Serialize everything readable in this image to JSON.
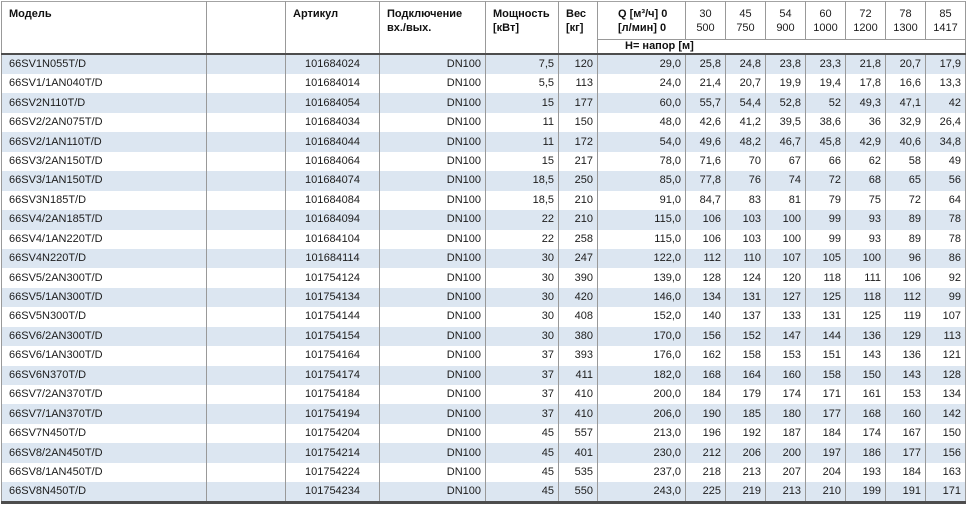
{
  "colors": {
    "row_stripe": "#dce6f1",
    "grid_line": "#999999",
    "heavy_border": "#4d4d4d",
    "header_text": "#111111",
    "body_text": "#1c1c1c"
  },
  "table": {
    "header": {
      "model": "Модель",
      "spacer": "",
      "article": "Артикул",
      "connection_line1": "Подключение",
      "connection_line2": "вх./вых.",
      "power_line1": "Мощность",
      "power_line2": "[кВт]",
      "weight_line1": "Вес",
      "weight_line2": "[кг]",
      "q_line1": "Q [м³/ч] 0",
      "q_line2": "[л/мин] 0",
      "head_subheader": "H= напор [м]",
      "flow_columns": [
        {
          "m3h": "30",
          "lmin": "500"
        },
        {
          "m3h": "45",
          "lmin": "750"
        },
        {
          "m3h": "54",
          "lmin": "900"
        },
        {
          "m3h": "60",
          "lmin": "1000"
        },
        {
          "m3h": "72",
          "lmin": "1200"
        },
        {
          "m3h": "78",
          "lmin": "1300"
        },
        {
          "m3h": "85",
          "lmin": "1417"
        }
      ]
    },
    "rows": [
      {
        "model": "66SV1N055T/D",
        "article": "101684024",
        "connection": "DN100",
        "power_kw": "7,5",
        "weight_kg": "120",
        "head_at_0": "29,0",
        "head_m": [
          "25,8",
          "24,8",
          "23,8",
          "23,3",
          "21,8",
          "20,7",
          "17,9"
        ]
      },
      {
        "model": "66SV1/1AN040T/D",
        "article": "101684014",
        "connection": "DN100",
        "power_kw": "5,5",
        "weight_kg": "113",
        "head_at_0": "24,0",
        "head_m": [
          "21,4",
          "20,7",
          "19,9",
          "19,4",
          "17,8",
          "16,6",
          "13,3"
        ]
      },
      {
        "model": "66SV2N110T/D",
        "article": "101684054",
        "connection": "DN100",
        "power_kw": "15",
        "weight_kg": "177",
        "head_at_0": "60,0",
        "head_m": [
          "55,7",
          "54,4",
          "52,8",
          "52",
          "49,3",
          "47,1",
          "42"
        ]
      },
      {
        "model": "66SV2/2AN075T/D",
        "article": "101684034",
        "connection": "DN100",
        "power_kw": "11",
        "weight_kg": "150",
        "head_at_0": "48,0",
        "head_m": [
          "42,6",
          "41,2",
          "39,5",
          "38,6",
          "36",
          "32,9",
          "26,4"
        ]
      },
      {
        "model": "66SV2/1AN110T/D",
        "article": "101684044",
        "connection": "DN100",
        "power_kw": "11",
        "weight_kg": "172",
        "head_at_0": "54,0",
        "head_m": [
          "49,6",
          "48,2",
          "46,7",
          "45,8",
          "42,9",
          "40,6",
          "34,8"
        ]
      },
      {
        "model": "66SV3/2AN150T/D",
        "article": "101684064",
        "connection": "DN100",
        "power_kw": "15",
        "weight_kg": "217",
        "head_at_0": "78,0",
        "head_m": [
          "71,6",
          "70",
          "67",
          "66",
          "62",
          "58",
          "49"
        ]
      },
      {
        "model": "66SV3/1AN150T/D",
        "article": "101684074",
        "connection": "DN100",
        "power_kw": "18,5",
        "weight_kg": "250",
        "head_at_0": "85,0",
        "head_m": [
          "77,8",
          "76",
          "74",
          "72",
          "68",
          "65",
          "56"
        ]
      },
      {
        "model": "66SV3N185T/D",
        "article": "101684084",
        "connection": "DN100",
        "power_kw": "18,5",
        "weight_kg": "210",
        "head_at_0": "91,0",
        "head_m": [
          "84,7",
          "83",
          "81",
          "79",
          "75",
          "72",
          "64"
        ]
      },
      {
        "model": "66SV4/2AN185T/D",
        "article": "101684094",
        "connection": "DN100",
        "power_kw": "22",
        "weight_kg": "210",
        "head_at_0": "115,0",
        "head_m": [
          "106",
          "103",
          "100",
          "99",
          "93",
          "89",
          "78"
        ]
      },
      {
        "model": "66SV4/1AN220T/D",
        "article": "101684104",
        "connection": "DN100",
        "power_kw": "22",
        "weight_kg": "258",
        "head_at_0": "115,0",
        "head_m": [
          "106",
          "103",
          "100",
          "99",
          "93",
          "89",
          "78"
        ]
      },
      {
        "model": "66SV4N220T/D",
        "article": "101684114",
        "connection": "DN100",
        "power_kw": "30",
        "weight_kg": "247",
        "head_at_0": "122,0",
        "head_m": [
          "112",
          "110",
          "107",
          "105",
          "100",
          "96",
          "86"
        ]
      },
      {
        "model": "66SV5/2AN300T/D",
        "article": "101754124",
        "connection": "DN100",
        "power_kw": "30",
        "weight_kg": "390",
        "head_at_0": "139,0",
        "head_m": [
          "128",
          "124",
          "120",
          "118",
          "111",
          "106",
          "92"
        ]
      },
      {
        "model": "66SV5/1AN300T/D",
        "article": "101754134",
        "connection": "DN100",
        "power_kw": "30",
        "weight_kg": "420",
        "head_at_0": "146,0",
        "head_m": [
          "134",
          "131",
          "127",
          "125",
          "118",
          "112",
          "99"
        ]
      },
      {
        "model": "66SV5N300T/D",
        "article": "101754144",
        "connection": "DN100",
        "power_kw": "30",
        "weight_kg": "408",
        "head_at_0": "152,0",
        "head_m": [
          "140",
          "137",
          "133",
          "131",
          "125",
          "119",
          "107"
        ]
      },
      {
        "model": "66SV6/2AN300T/D",
        "article": "101754154",
        "connection": "DN100",
        "power_kw": "30",
        "weight_kg": "380",
        "head_at_0": "170,0",
        "head_m": [
          "156",
          "152",
          "147",
          "144",
          "136",
          "129",
          "113"
        ]
      },
      {
        "model": "66SV6/1AN300T/D",
        "article": "101754164",
        "connection": "DN100",
        "power_kw": "37",
        "weight_kg": "393",
        "head_at_0": "176,0",
        "head_m": [
          "162",
          "158",
          "153",
          "151",
          "143",
          "136",
          "121"
        ]
      },
      {
        "model": "66SV6N370T/D",
        "article": "101754174",
        "connection": "DN100",
        "power_kw": "37",
        "weight_kg": "411",
        "head_at_0": "182,0",
        "head_m": [
          "168",
          "164",
          "160",
          "158",
          "150",
          "143",
          "128"
        ]
      },
      {
        "model": "66SV7/2AN370T/D",
        "article": "101754184",
        "connection": "DN100",
        "power_kw": "37",
        "weight_kg": "410",
        "head_at_0": "200,0",
        "head_m": [
          "184",
          "179",
          "174",
          "171",
          "161",
          "153",
          "134"
        ]
      },
      {
        "model": "66SV7/1AN370T/D",
        "article": "101754194",
        "connection": "DN100",
        "power_kw": "37",
        "weight_kg": "410",
        "head_at_0": "206,0",
        "head_m": [
          "190",
          "185",
          "180",
          "177",
          "168",
          "160",
          "142"
        ]
      },
      {
        "model": "66SV7N450T/D",
        "article": "101754204",
        "connection": "DN100",
        "power_kw": "45",
        "weight_kg": "557",
        "head_at_0": "213,0",
        "head_m": [
          "196",
          "192",
          "187",
          "184",
          "174",
          "167",
          "150"
        ]
      },
      {
        "model": "66SV8/2AN450T/D",
        "article": "101754214",
        "connection": "DN100",
        "power_kw": "45",
        "weight_kg": "401",
        "head_at_0": "230,0",
        "head_m": [
          "212",
          "206",
          "200",
          "197",
          "186",
          "177",
          "156"
        ]
      },
      {
        "model": "66SV8/1AN450T/D",
        "article": "101754224",
        "connection": "DN100",
        "power_kw": "45",
        "weight_kg": "535",
        "head_at_0": "237,0",
        "head_m": [
          "218",
          "213",
          "207",
          "204",
          "193",
          "184",
          "163"
        ]
      },
      {
        "model": "66SV8N450T/D",
        "article": "101754234",
        "connection": "DN100",
        "power_kw": "45",
        "weight_kg": "550",
        "head_at_0": "243,0",
        "head_m": [
          "225",
          "219",
          "213",
          "210",
          "199",
          "191",
          "171"
        ]
      }
    ]
  }
}
